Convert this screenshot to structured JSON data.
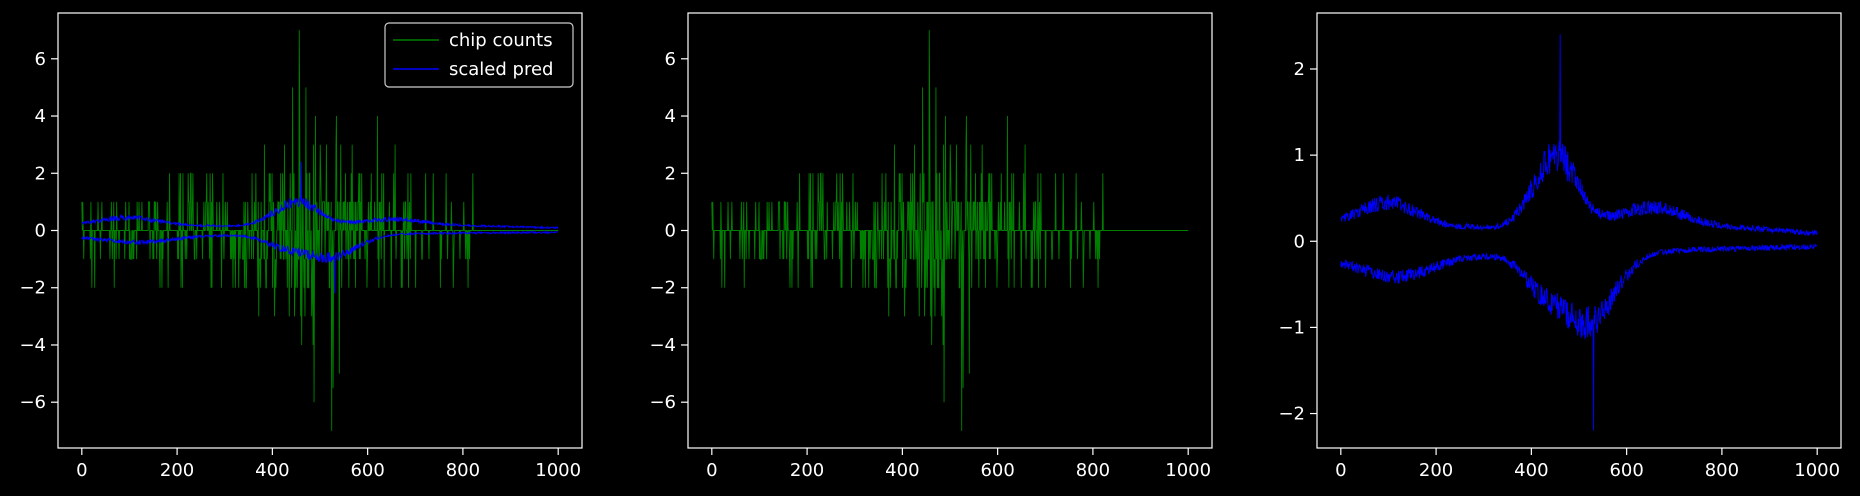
{
  "chart_data": [
    {
      "type": "line",
      "xlim": [
        -50,
        1050
      ],
      "ylim": [
        -7.6,
        7.6
      ],
      "xticks": [
        0,
        200,
        400,
        600,
        800,
        1000
      ],
      "yticks": [
        -6,
        -4,
        -2,
        0,
        2,
        4,
        6
      ],
      "legend": {
        "placement": "top-right",
        "entries": [
          {
            "name": "chip counts",
            "color": "#008000"
          },
          {
            "name": "scaled pred",
            "color": "#0000ff"
          }
        ]
      },
      "series": [
        {
          "name": "chip counts",
          "color": "#008000",
          "kind": "counts",
          "x_range": [
            0,
            1000
          ],
          "points": 1000,
          "spikes": [
            [
              456,
              7
            ],
            [
              524,
              -7
            ],
            [
              487,
              -6
            ],
            [
              620,
              4
            ],
            [
              527,
              -5.5
            ],
            [
              442,
              5
            ],
            [
              470,
              5
            ],
            [
              540,
              -5
            ]
          ]
        },
        {
          "name": "scaled pred",
          "color": "#0000ff",
          "kind": "band",
          "x_range": [
            0,
            1000
          ],
          "points": 1000,
          "peak_upper": 2.4,
          "peak_lower": -2.2
        }
      ]
    },
    {
      "type": "line",
      "xlim": [
        -50,
        1050
      ],
      "ylim": [
        -7.6,
        7.6
      ],
      "xticks": [
        0,
        200,
        400,
        600,
        800,
        1000
      ],
      "yticks": [
        -6,
        -4,
        -2,
        0,
        2,
        4,
        6
      ],
      "series": [
        {
          "name": "chip counts",
          "color": "#008000",
          "kind": "counts",
          "x_range": [
            0,
            1000
          ],
          "points": 1000,
          "spikes": [
            [
              456,
              7
            ],
            [
              524,
              -7
            ],
            [
              487,
              -6
            ],
            [
              620,
              4
            ],
            [
              527,
              -5.5
            ],
            [
              442,
              5
            ],
            [
              470,
              5
            ],
            [
              540,
              -5
            ]
          ]
        }
      ]
    },
    {
      "type": "line",
      "xlim": [
        -50,
        1050
      ],
      "ylim": [
        -2.4,
        2.65
      ],
      "xticks": [
        0,
        200,
        400,
        600,
        800,
        1000
      ],
      "yticks": [
        -2,
        -1,
        0,
        1,
        2
      ],
      "series": [
        {
          "name": "scaled pred",
          "color": "#0000ff",
          "kind": "band",
          "x_range": [
            0,
            1000
          ],
          "points": 1000,
          "peak_upper": 2.4,
          "peak_lower": -2.2
        }
      ]
    }
  ]
}
